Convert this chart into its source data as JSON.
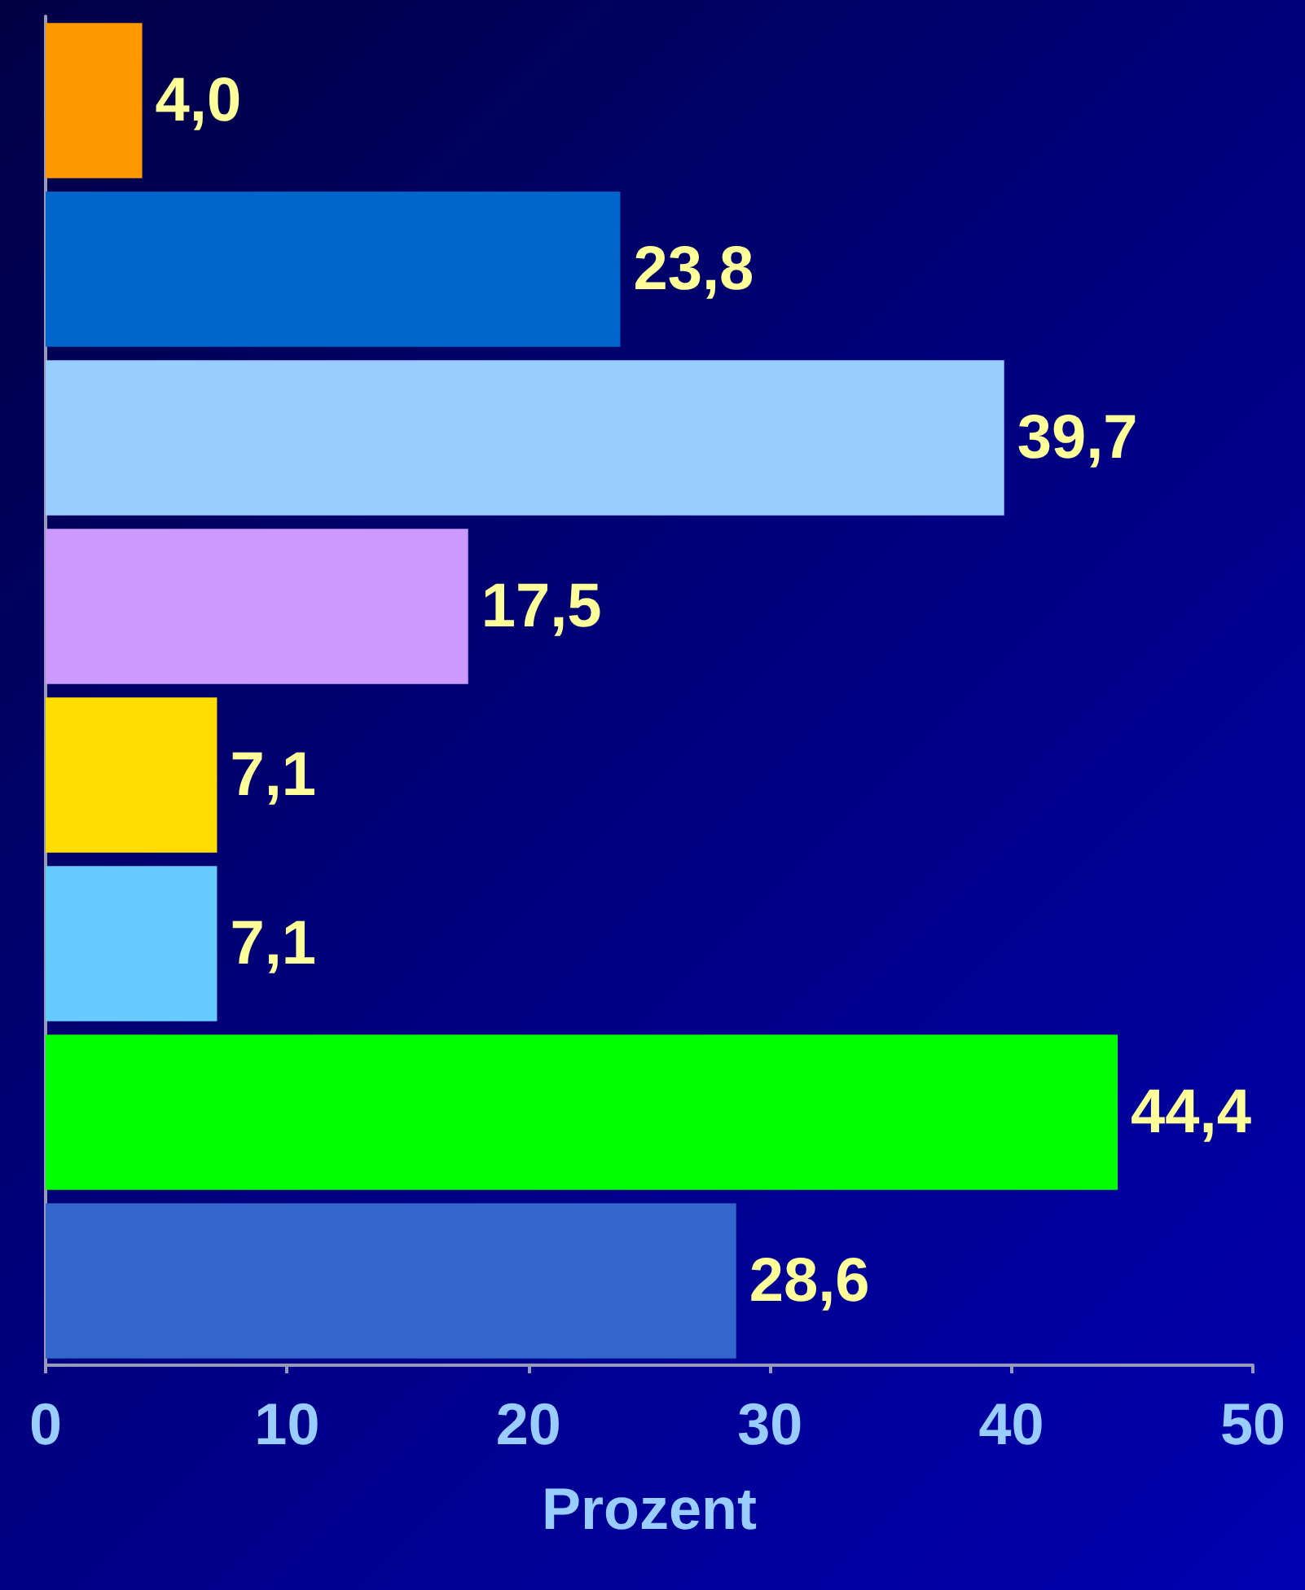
{
  "chart_data": {
    "type": "bar",
    "orientation": "horizontal",
    "categories": [
      null,
      null,
      null,
      null,
      null,
      null,
      null,
      null
    ],
    "values": [
      4.0,
      23.8,
      39.7,
      17.5,
      7.1,
      7.1,
      44.4,
      28.6
    ],
    "colors": [
      "#ff9900",
      "#0066cc",
      "#99ccff",
      "#cc99ff",
      "#ffdd00",
      "#66ccff",
      "#00ff00",
      "#3366cc"
    ],
    "value_labels": [
      "4,0",
      "23,8",
      "39,7",
      "17,5",
      "7,1",
      "7,1",
      "44,4",
      "28,6"
    ],
    "xlabel": "Prozent",
    "xlim": [
      0,
      50
    ],
    "xticks": [
      0,
      10,
      20,
      30,
      40,
      50
    ],
    "grid": false
  }
}
